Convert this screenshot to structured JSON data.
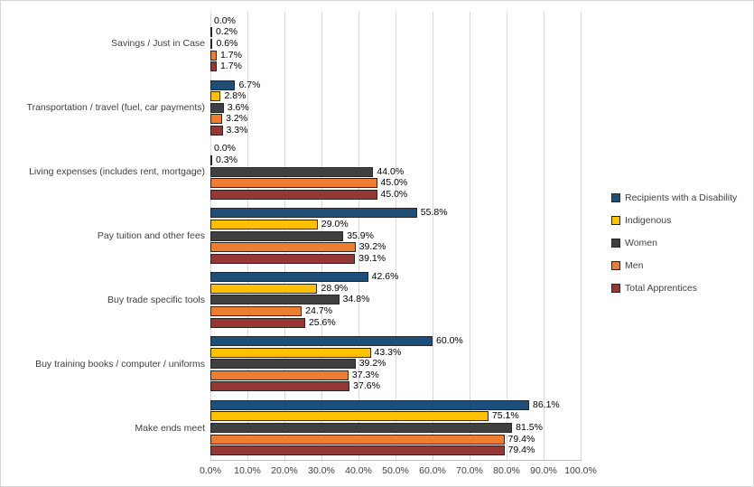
{
  "chart_data": {
    "type": "bar",
    "orientation": "horizontal",
    "title": "",
    "xlabel": "",
    "ylabel": "",
    "xlim": [
      0,
      100
    ],
    "grid": true,
    "legend_position": "right",
    "data_label_format": "0.0%",
    "x_ticks": [
      "0.0%",
      "10.0%",
      "20.0%",
      "30.0%",
      "40.0%",
      "50.0%",
      "60.0%",
      "70.0%",
      "80.0%",
      "90.0%",
      "100.0%"
    ],
    "categories": [
      "Savings / Just in Case",
      "Transportation / travel (fuel, car payments)",
      "Living expenses (includes rent, mortgage)",
      "Pay tuition and other fees",
      "Buy trade specific tools",
      "Buy training books / computer / uniforms",
      "Make ends meet"
    ],
    "series": [
      {
        "name": "Recipients with a Disability",
        "color": "#1F4E79",
        "values": [
          0.0,
          6.7,
          0.0,
          55.8,
          42.6,
          60.0,
          86.1
        ]
      },
      {
        "name": "Indigenous",
        "color": "#FFC000",
        "values": [
          0.2,
          2.8,
          0.3,
          29.0,
          28.9,
          43.3,
          75.1
        ]
      },
      {
        "name": "Women",
        "color": "#404040",
        "values": [
          0.6,
          3.6,
          44.0,
          35.9,
          34.8,
          39.2,
          81.5
        ]
      },
      {
        "name": "Men",
        "color": "#ED7D31",
        "values": [
          1.7,
          3.2,
          45.0,
          39.2,
          24.7,
          37.3,
          79.4
        ]
      },
      {
        "name": "Total Apprentices",
        "color": "#953735",
        "values": [
          1.7,
          3.3,
          45.0,
          39.1,
          25.6,
          37.6,
          79.4
        ]
      }
    ],
    "colors": {
      "gridline": "#d9d9d9",
      "axis_line": "#bfbfbf",
      "label_text": "#000000",
      "axis_text": "#404040"
    }
  }
}
